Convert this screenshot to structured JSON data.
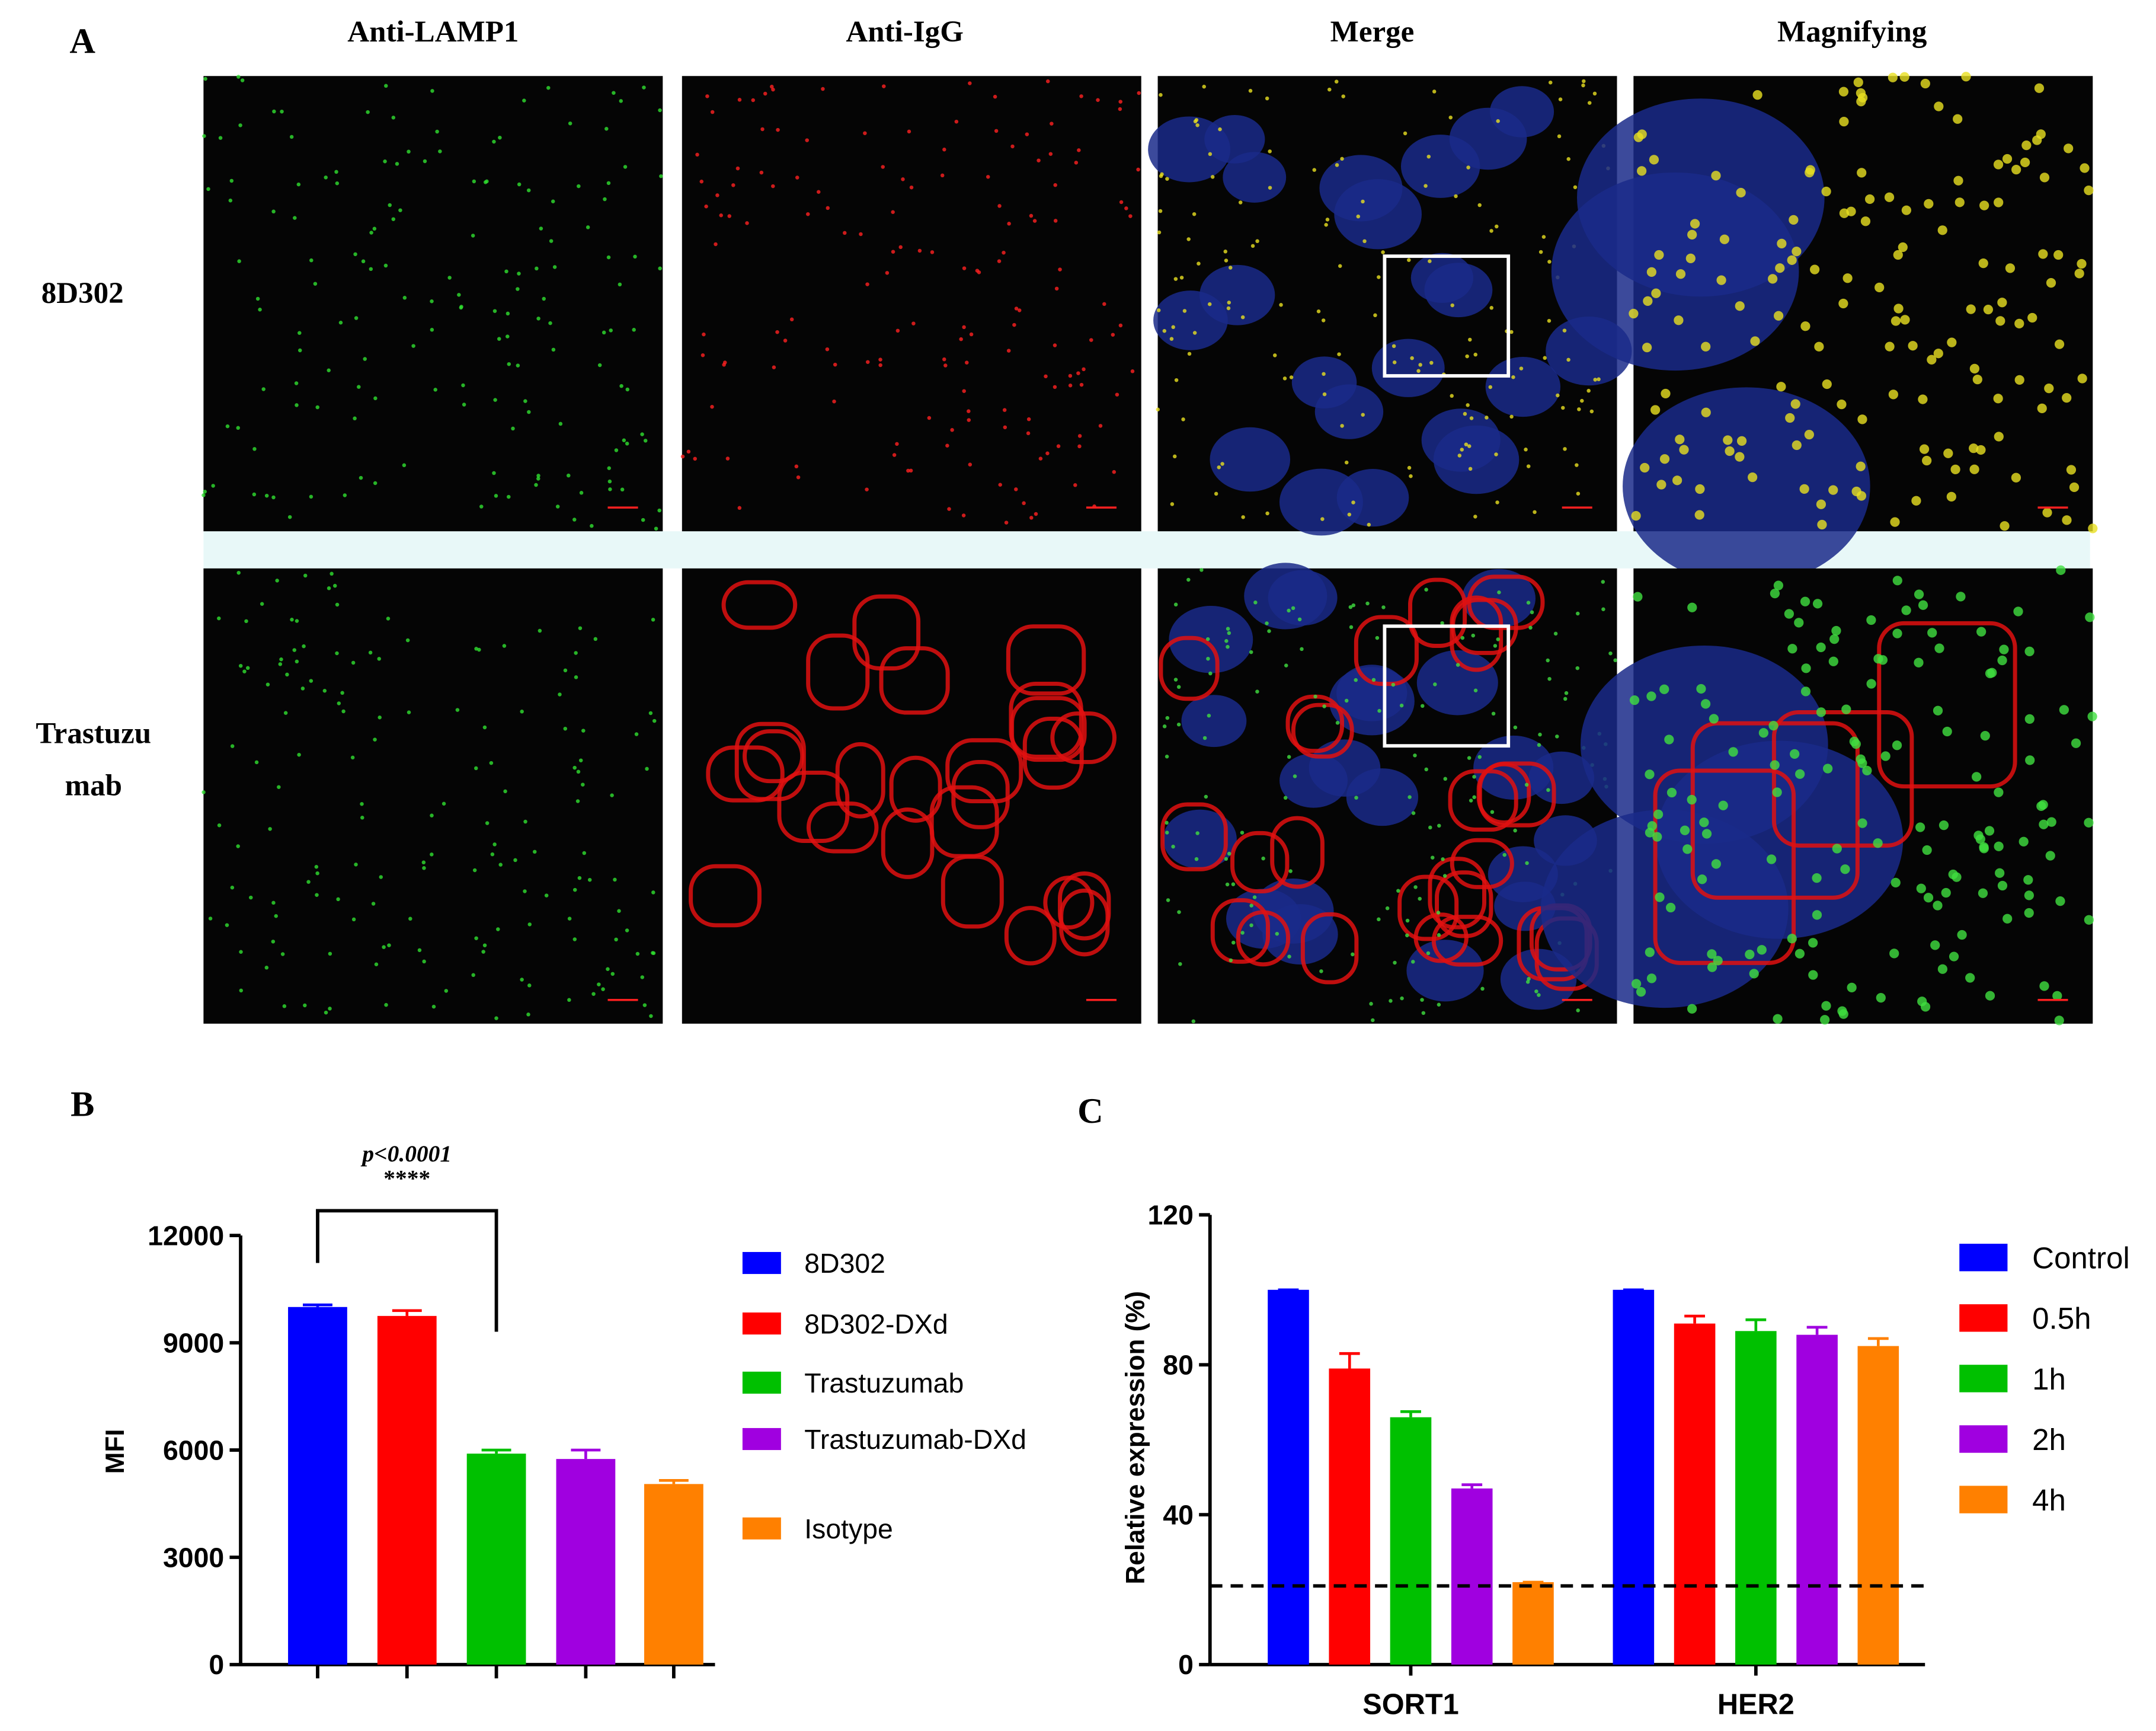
{
  "panel_a": {
    "label": "A",
    "columns": [
      "Anti-LAMP1",
      "Anti-IgG",
      "Merge",
      "Magnifying"
    ],
    "rows": [
      [
        "8D302"
      ],
      [
        "Trastuzu",
        "mab"
      ]
    ]
  },
  "chart_data": [
    {
      "type": "bar",
      "panel_label": "B",
      "ylabel": "MFI",
      "annotations": [
        "p<0.0001",
        "****"
      ],
      "categories": [
        null,
        null,
        null,
        null,
        null
      ],
      "series": [
        {
          "name": "8D302",
          "color": "#0000ff",
          "values": [
            10000,
            null,
            null,
            null,
            null
          ],
          "errors": [
            60,
            null,
            null,
            null,
            null
          ]
        },
        {
          "name": "8D302-DXd",
          "color": "#ff0000",
          "values": [
            null,
            9750,
            null,
            null,
            null
          ],
          "errors": [
            null,
            150,
            null,
            null,
            null
          ]
        },
        {
          "name": "Trastuzumab",
          "color": "#00c000",
          "values": [
            null,
            null,
            5900,
            null,
            null
          ],
          "errors": [
            null,
            null,
            100,
            null,
            null
          ]
        },
        {
          "name": "Trastuzumab-DXd",
          "color": "#a000e0",
          "values": [
            null,
            null,
            null,
            5750,
            null
          ],
          "errors": [
            null,
            null,
            null,
            250,
            null
          ]
        },
        {
          "name": "Isotype",
          "color": "#ff8000",
          "values": [
            null,
            null,
            null,
            null,
            5050
          ],
          "errors": [
            null,
            null,
            null,
            null,
            100
          ]
        }
      ],
      "ylim": [
        0,
        12000
      ],
      "yticks": [
        0,
        3000,
        6000,
        9000,
        12000
      ]
    },
    {
      "type": "bar",
      "panel_label": "C",
      "ylabel": "Relative expression (%)",
      "categories": [
        "SORT1",
        "HER2"
      ],
      "series": [
        {
          "name": "Control",
          "color": "#0000ff",
          "values": [
            100,
            100
          ],
          "errors": [
            0,
            0
          ]
        },
        {
          "name": "0.5h",
          "color": "#ff0000",
          "values": [
            79,
            91
          ],
          "errors": [
            4,
            2
          ]
        },
        {
          "name": "1h",
          "color": "#00c000",
          "values": [
            66,
            89
          ],
          "errors": [
            1.5,
            3
          ]
        },
        {
          "name": "2h",
          "color": "#a000e0",
          "values": [
            47,
            88
          ],
          "errors": [
            1,
            2
          ]
        },
        {
          "name": "4h",
          "color": "#ff8000",
          "values": [
            22,
            85
          ],
          "errors": [
            0,
            2
          ]
        }
      ],
      "reference_line": 21,
      "ylim": [
        0,
        120
      ],
      "yticks": [
        0,
        40,
        80,
        120
      ]
    }
  ]
}
